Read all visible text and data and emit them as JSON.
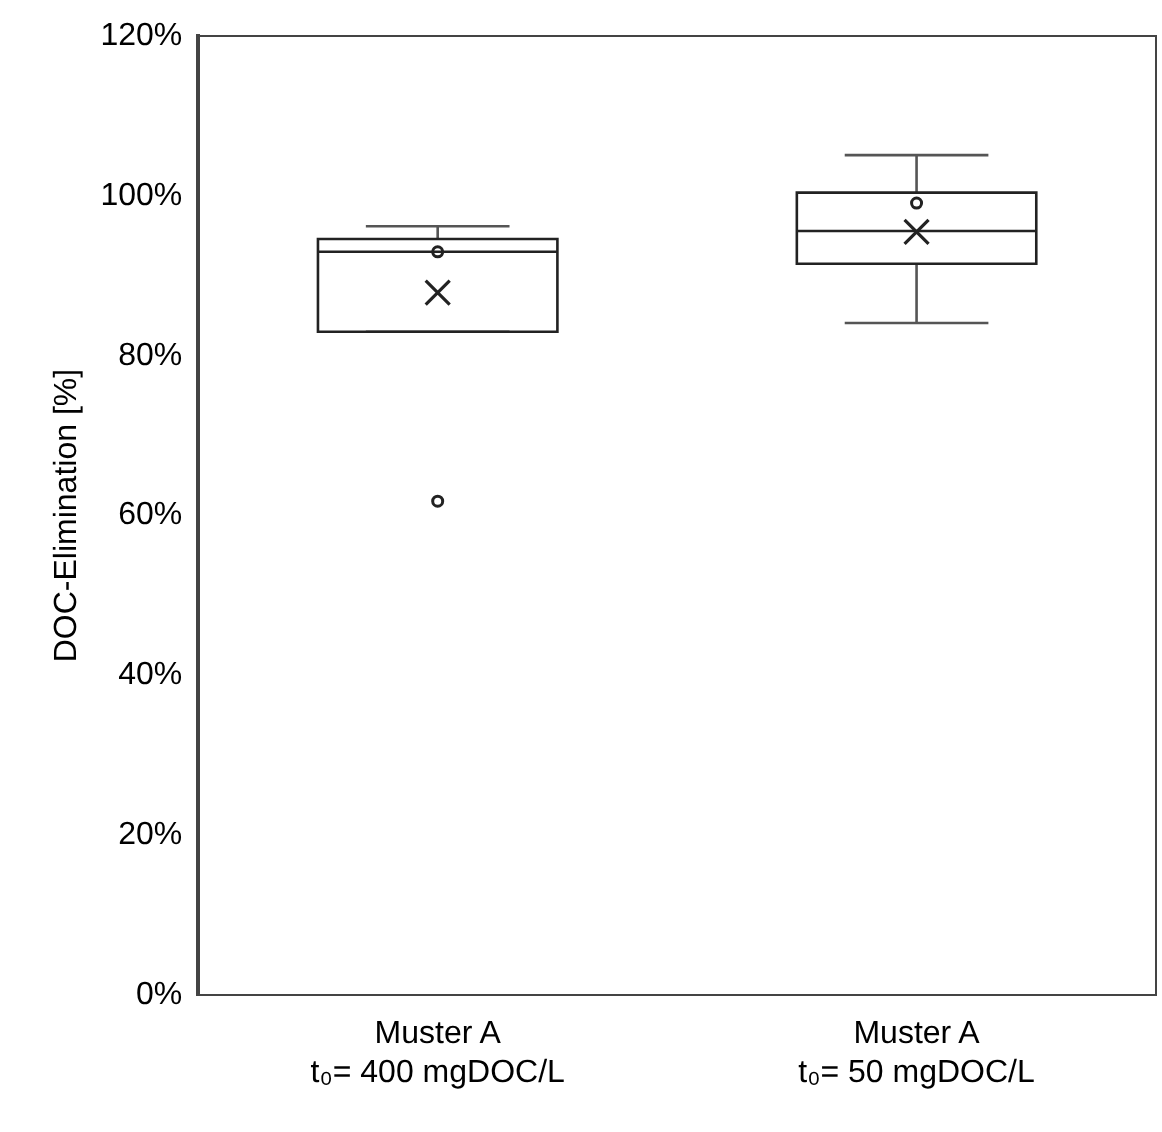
{
  "chart_data": {
    "type": "box",
    "ylabel": "DOC-Elimination [%]",
    "categories": [
      "Muster A\nt₀= 400 mgDOC/L",
      "Muster A\nt₀= 50 mgDOC/L"
    ],
    "boxes": [
      {
        "low": 83,
        "q1": 83,
        "median": 93,
        "q3": 94.6,
        "high": 96.2,
        "mean": 87.9,
        "outliers": [
          61.8,
          93
        ]
      },
      {
        "low": 84.1,
        "q1": 91.5,
        "median": 95.6,
        "q3": 100.4,
        "high": 105.1,
        "mean": 95.5,
        "outliers": [
          99.1
        ]
      }
    ],
    "ylim": [
      0,
      120
    ],
    "yticks": [
      {
        "value": 0,
        "label": "0%"
      },
      {
        "value": 20,
        "label": "20%"
      },
      {
        "value": 40,
        "label": "40%"
      },
      {
        "value": 60,
        "label": "60%"
      },
      {
        "value": 80,
        "label": "80%"
      },
      {
        "value": 100,
        "label": "100%"
      },
      {
        "value": 120,
        "label": "120%"
      }
    ],
    "grid": false,
    "legend": false
  }
}
